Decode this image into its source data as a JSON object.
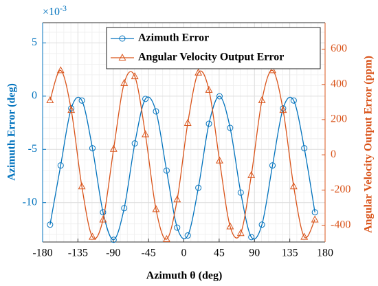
{
  "chart_data": {
    "type": "line",
    "xlabel": "Azimuth θ (deg)",
    "ylabel": "Azimuth Error (deg)",
    "y2label": "Angular Velocity Output Error (ppm)",
    "y_multiplier": {
      "base": "×10",
      "exponent": "-3"
    },
    "x": [
      -170.5,
      -157,
      -143.5,
      -130,
      -116.5,
      -103,
      -89.5,
      -76,
      -62.5,
      -49,
      -35.5,
      -22,
      -8.5,
      5,
      18.5,
      32,
      45.5,
      59,
      72.5,
      86,
      99.5,
      113,
      126.5,
      140,
      153.5,
      167
    ],
    "series": [
      {
        "name": "Azimuth Error",
        "color": "#0072bd",
        "marker": "circle",
        "values": [
          -12.07,
          -6.51,
          -1.15,
          -0.41,
          -4.89,
          -10.91,
          -13.49,
          -10.52,
          -4.44,
          -0.26,
          -1.43,
          -6.99,
          -12.35,
          -13.09,
          -8.61,
          -2.59,
          -0.01,
          -2.98,
          -9.06,
          -13.24,
          -12.07,
          -6.51,
          -1.15,
          -0.41,
          -4.89,
          -10.91
        ]
      },
      {
        "name": "Angular Velocity Output Error",
        "color": "#d95319",
        "marker": "triangle",
        "axis": "y2",
        "values": [
          309,
          479,
          254,
          -180,
          -466,
          -368,
          33,
          407,
          445,
          116,
          -309,
          -479,
          -254,
          180,
          466,
          368,
          -33,
          -407,
          -445,
          -116,
          309,
          479,
          254,
          -180,
          -466,
          -368
        ]
      }
    ],
    "xlim": [
      -180,
      180
    ],
    "xticks": [
      -180,
      -135,
      -90,
      -45,
      0,
      45,
      90,
      135,
      180
    ],
    "ylim": [
      -13.7,
      6.9
    ],
    "yticks": [
      -10,
      -5,
      0,
      5
    ],
    "y2lim": [
      -495,
      750
    ],
    "y2ticks": [
      -400,
      -200,
      0,
      200,
      400,
      600
    ],
    "grid": true,
    "minor_grid": true,
    "legend": "upper right"
  }
}
